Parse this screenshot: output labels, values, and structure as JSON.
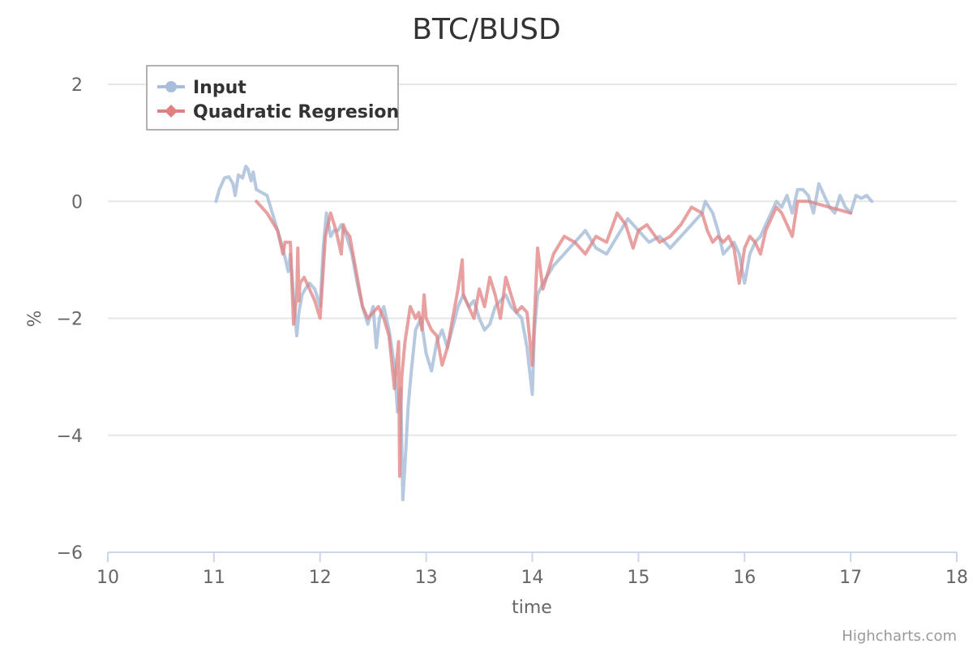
{
  "chart_data": {
    "type": "line",
    "title": "BTC/BUSD",
    "xlabel": "time",
    "ylabel": "%",
    "xlim": [
      10,
      18
    ],
    "ylim": [
      -6,
      2
    ],
    "x_ticks": [
      10,
      11,
      12,
      13,
      14,
      15,
      16,
      17,
      18
    ],
    "y_ticks": [
      -6,
      -4,
      -2,
      0,
      2
    ],
    "grid": "horizontal",
    "legend_placement": "top-left",
    "credits": "Highcharts.com",
    "series": [
      {
        "name": "Input",
        "color": "#a9bfd9",
        "marker": "circle",
        "x": [
          11.02,
          11.05,
          11.1,
          11.14,
          11.18,
          11.2,
          11.23,
          11.27,
          11.3,
          11.32,
          11.35,
          11.37,
          11.4,
          11.5,
          11.55,
          11.6,
          11.65,
          11.7,
          11.72,
          11.75,
          11.78,
          11.8,
          11.83,
          11.86,
          11.9,
          11.95,
          12.0,
          12.03,
          12.06,
          12.08,
          12.1,
          12.13,
          12.17,
          12.2,
          12.25,
          12.3,
          12.35,
          12.4,
          12.45,
          12.5,
          12.53,
          12.56,
          12.6,
          12.65,
          12.7,
          12.73,
          12.76,
          12.78,
          12.8,
          12.83,
          12.86,
          12.9,
          12.95,
          13.0,
          13.05,
          13.1,
          13.15,
          13.2,
          13.3,
          13.35,
          13.4,
          13.45,
          13.5,
          13.55,
          13.6,
          13.65,
          13.7,
          13.75,
          13.8,
          13.85,
          13.9,
          13.95,
          14.0,
          14.02,
          14.05,
          14.1,
          14.2,
          14.3,
          14.4,
          14.5,
          14.6,
          14.7,
          14.8,
          14.9,
          15.0,
          15.1,
          15.2,
          15.3,
          15.4,
          15.5,
          15.6,
          15.63,
          15.7,
          15.75,
          15.8,
          15.85,
          15.9,
          15.95,
          16.0,
          16.02,
          16.05,
          16.1,
          16.15,
          16.2,
          16.25,
          16.3,
          16.35,
          16.4,
          16.45,
          16.5,
          16.55,
          16.6,
          16.65,
          16.7,
          16.75,
          16.8,
          16.85,
          16.9,
          16.95,
          17.0,
          17.05,
          17.1,
          17.15,
          17.2
        ],
        "y": [
          0.0,
          0.2,
          0.4,
          0.42,
          0.3,
          0.1,
          0.45,
          0.4,
          0.6,
          0.55,
          0.35,
          0.5,
          0.2,
          0.1,
          -0.2,
          -0.5,
          -0.8,
          -1.2,
          -0.9,
          -1.6,
          -2.3,
          -1.9,
          -1.6,
          -1.5,
          -1.4,
          -1.5,
          -1.8,
          -0.8,
          -0.2,
          -0.4,
          -0.6,
          -0.5,
          -0.5,
          -0.4,
          -0.6,
          -0.9,
          -1.4,
          -1.8,
          -2.1,
          -1.8,
          -2.5,
          -2.0,
          -1.8,
          -2.2,
          -2.8,
          -3.6,
          -3.2,
          -5.1,
          -4.5,
          -3.5,
          -2.9,
          -2.2,
          -2.0,
          -2.6,
          -2.9,
          -2.4,
          -2.2,
          -2.5,
          -1.8,
          -1.6,
          -1.8,
          -1.7,
          -2.0,
          -2.2,
          -2.1,
          -1.8,
          -1.7,
          -1.6,
          -1.8,
          -1.9,
          -2.0,
          -2.5,
          -3.3,
          -2.2,
          -1.6,
          -1.4,
          -1.1,
          -0.9,
          -0.7,
          -0.5,
          -0.8,
          -0.9,
          -0.6,
          -0.3,
          -0.5,
          -0.7,
          -0.6,
          -0.8,
          -0.6,
          -0.4,
          -0.2,
          0.0,
          -0.2,
          -0.5,
          -0.9,
          -0.8,
          -0.7,
          -0.9,
          -1.4,
          -1.2,
          -0.9,
          -0.7,
          -0.6,
          -0.4,
          -0.2,
          0.0,
          -0.1,
          0.1,
          -0.2,
          0.2,
          0.2,
          0.1,
          -0.2,
          0.3,
          0.1,
          -0.1,
          -0.2,
          0.1,
          -0.1,
          -0.2,
          0.1,
          0.05,
          0.1,
          0.0
        ]
      },
      {
        "name": "Quadratic Regresion",
        "color": "#e08080",
        "marker": "diamond",
        "x": [
          11.4,
          11.5,
          11.6,
          11.65,
          11.67,
          11.72,
          11.75,
          11.78,
          11.79,
          11.8,
          11.81,
          11.85,
          11.9,
          11.95,
          12.0,
          12.05,
          12.1,
          12.15,
          12.2,
          12.22,
          12.24,
          12.28,
          12.3,
          12.35,
          12.4,
          12.45,
          12.5,
          12.55,
          12.6,
          12.65,
          12.7,
          12.74,
          12.75,
          12.76,
          12.77,
          12.8,
          12.85,
          12.9,
          12.93,
          12.96,
          12.98,
          13.0,
          13.05,
          13.1,
          13.15,
          13.2,
          13.25,
          13.3,
          13.34,
          13.35,
          13.4,
          13.45,
          13.5,
          13.55,
          13.6,
          13.65,
          13.7,
          13.75,
          13.8,
          13.85,
          13.9,
          13.95,
          14.0,
          14.05,
          14.1,
          14.2,
          14.3,
          14.4,
          14.5,
          14.6,
          14.7,
          14.8,
          14.88,
          14.95,
          15.0,
          15.08,
          15.2,
          15.3,
          15.4,
          15.5,
          15.6,
          15.65,
          15.7,
          15.75,
          15.8,
          15.85,
          15.9,
          15.95,
          16.0,
          16.05,
          16.1,
          16.15,
          16.2,
          16.25,
          16.3,
          16.35,
          16.4,
          16.45,
          16.5,
          16.6,
          16.8,
          17.0
        ],
        "y": [
          0.0,
          -0.2,
          -0.5,
          -0.9,
          -0.7,
          -0.7,
          -2.1,
          -1.6,
          -0.8,
          -1.7,
          -1.4,
          -1.3,
          -1.5,
          -1.7,
          -2.0,
          -0.6,
          -0.2,
          -0.5,
          -0.9,
          -0.4,
          -0.5,
          -0.6,
          -0.8,
          -1.3,
          -1.8,
          -2.0,
          -1.9,
          -1.8,
          -2.0,
          -2.3,
          -3.2,
          -2.4,
          -4.7,
          -3.6,
          -3.0,
          -2.4,
          -1.8,
          -2.0,
          -1.9,
          -2.2,
          -1.6,
          -2.0,
          -2.2,
          -2.3,
          -2.8,
          -2.5,
          -2.0,
          -1.5,
          -1.0,
          -1.6,
          -1.8,
          -2.0,
          -1.5,
          -1.8,
          -1.3,
          -1.6,
          -2.0,
          -1.3,
          -1.6,
          -1.9,
          -1.8,
          -1.9,
          -2.8,
          -0.8,
          -1.5,
          -0.9,
          -0.6,
          -0.7,
          -0.9,
          -0.6,
          -0.7,
          -0.2,
          -0.4,
          -0.8,
          -0.5,
          -0.4,
          -0.7,
          -0.6,
          -0.4,
          -0.1,
          -0.2,
          -0.5,
          -0.7,
          -0.6,
          -0.7,
          -0.6,
          -0.8,
          -1.4,
          -0.8,
          -0.6,
          -0.7,
          -0.9,
          -0.5,
          -0.3,
          -0.1,
          -0.2,
          -0.4,
          -0.6,
          0.0,
          0.0,
          -0.1,
          -0.2
        ]
      }
    ]
  }
}
